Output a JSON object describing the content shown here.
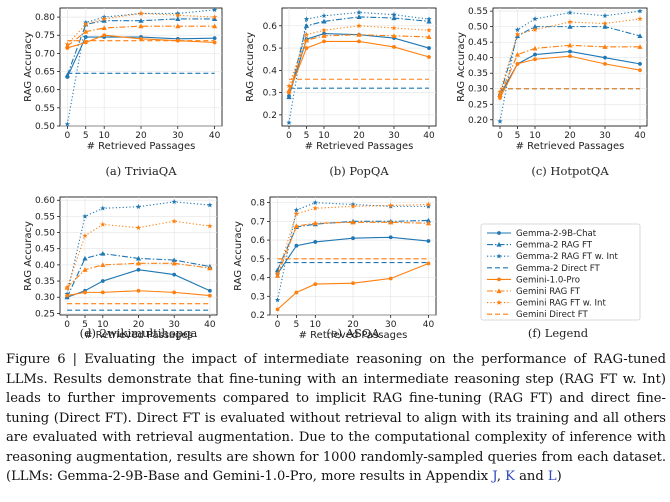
{
  "chart_data": [
    {
      "type": "line",
      "title": "TriviaQA",
      "subcaption_label": "(a)",
      "xlabel": "# Retrieved Passages",
      "ylabel": "RAG Accuracy",
      "x": [
        0,
        5,
        10,
        20,
        30,
        40
      ],
      "ylim": [
        0.5,
        0.825
      ],
      "yticks": [
        0.5,
        0.55,
        0.6,
        0.65,
        0.7,
        0.75,
        0.8
      ],
      "ytick_labels": [
        "0.50",
        "0.55",
        "0.60",
        "0.65",
        "0.70",
        "0.75",
        "0.80"
      ],
      "series": [
        {
          "name": "Gemma-2-9B-Chat",
          "values": [
            0.635,
            0.745,
            0.745,
            0.745,
            0.74,
            0.742
          ]
        },
        {
          "name": "Gemma-2 RAG FT",
          "values": [
            0.64,
            0.78,
            0.79,
            0.79,
            0.795,
            0.795
          ]
        },
        {
          "name": "Gemma-2 RAG FT w. Int",
          "values": [
            0.505,
            0.785,
            0.8,
            0.81,
            0.81,
            0.82
          ]
        },
        {
          "name": "Gemma-2 Direct FT",
          "values": [
            0.645,
            0.645,
            0.645,
            0.645,
            0.645,
            0.645
          ]
        },
        {
          "name": "Gemini-1.0-Pro",
          "values": [
            0.715,
            0.73,
            0.75,
            0.74,
            0.735,
            0.73
          ]
        },
        {
          "name": "Gemini RAG FT",
          "values": [
            0.72,
            0.76,
            0.77,
            0.775,
            0.775,
            0.775
          ]
        },
        {
          "name": "Gemini RAG FT w. Int",
          "values": [
            0.725,
            0.78,
            0.795,
            0.81,
            0.805,
            0.8
          ]
        },
        {
          "name": "Gemini Direct FT",
          "values": [
            0.735,
            0.735,
            0.735,
            0.735,
            0.735,
            0.735
          ]
        }
      ]
    },
    {
      "type": "line",
      "title": "PopQA",
      "subcaption_label": "(b)",
      "xlabel": "# Retrieved Passages",
      "ylabel": "RAG Accuracy",
      "x": [
        0,
        5,
        10,
        20,
        30,
        40
      ],
      "ylim": [
        0.15,
        0.68
      ],
      "yticks": [
        0.2,
        0.3,
        0.4,
        0.5,
        0.6
      ],
      "ytick_labels": [
        "0.2",
        "0.3",
        "0.4",
        "0.5",
        "0.6"
      ],
      "series": [
        {
          "name": "Gemma-2-9B-Chat",
          "values": [
            0.285,
            0.54,
            0.565,
            0.56,
            0.545,
            0.5
          ]
        },
        {
          "name": "Gemma-2 RAG FT",
          "values": [
            0.28,
            0.6,
            0.62,
            0.64,
            0.635,
            0.62
          ]
        },
        {
          "name": "Gemma-2 RAG FT w. Int",
          "values": [
            0.165,
            0.63,
            0.645,
            0.66,
            0.65,
            0.63
          ]
        },
        {
          "name": "Gemma-2 Direct FT",
          "values": [
            0.32,
            0.32,
            0.32,
            0.32,
            0.32,
            0.32
          ]
        },
        {
          "name": "Gemini-1.0-Pro",
          "values": [
            0.3,
            0.5,
            0.53,
            0.53,
            0.505,
            0.46
          ]
        },
        {
          "name": "Gemini RAG FT",
          "values": [
            0.31,
            0.535,
            0.555,
            0.56,
            0.555,
            0.55
          ]
        },
        {
          "name": "Gemini RAG FT w. Int",
          "values": [
            0.33,
            0.56,
            0.58,
            0.6,
            0.59,
            0.58
          ]
        },
        {
          "name": "Gemini Direct FT",
          "values": [
            0.36,
            0.36,
            0.36,
            0.36,
            0.36,
            0.36
          ]
        }
      ]
    },
    {
      "type": "line",
      "title": "HotpotQA",
      "subcaption_label": "(c)",
      "xlabel": "# Retrieved Passages",
      "ylabel": "RAG Accuracy",
      "x": [
        0,
        5,
        10,
        20,
        30,
        40
      ],
      "ylim": [
        0.18,
        0.56
      ],
      "yticks": [
        0.2,
        0.25,
        0.3,
        0.35,
        0.4,
        0.45,
        0.5,
        0.55
      ],
      "ytick_labels": [
        "0.20",
        "0.25",
        "0.30",
        "0.35",
        "0.40",
        "0.45",
        "0.50",
        "0.55"
      ],
      "series": [
        {
          "name": "Gemma-2-9B-Chat",
          "values": [
            0.28,
            0.38,
            0.41,
            0.42,
            0.4,
            0.38
          ]
        },
        {
          "name": "Gemma-2 RAG FT",
          "values": [
            0.28,
            0.47,
            0.5,
            0.5,
            0.5,
            0.47
          ]
        },
        {
          "name": "Gemma-2 RAG FT w. Int",
          "values": [
            0.195,
            0.49,
            0.525,
            0.545,
            0.535,
            0.55
          ]
        },
        {
          "name": "Gemma-2 Direct FT",
          "values": [
            0.3,
            0.3,
            0.3,
            0.3,
            0.3,
            0.3
          ]
        },
        {
          "name": "Gemini-1.0-Pro",
          "values": [
            0.27,
            0.38,
            0.395,
            0.405,
            0.38,
            0.36
          ]
        },
        {
          "name": "Gemini RAG FT",
          "values": [
            0.28,
            0.41,
            0.43,
            0.44,
            0.435,
            0.435
          ]
        },
        {
          "name": "Gemini RAG FT w. Int",
          "values": [
            0.29,
            0.475,
            0.49,
            0.515,
            0.51,
            0.525
          ]
        },
        {
          "name": "Gemini Direct FT",
          "values": [
            0.3,
            0.3,
            0.3,
            0.3,
            0.3,
            0.3
          ]
        }
      ]
    },
    {
      "type": "line",
      "title": "2wikimultihopqa",
      "subcaption_label": "(d)",
      "xlabel": "# Retrieved Passages",
      "ylabel": "RAG Accuracy",
      "x": [
        0,
        5,
        10,
        20,
        30,
        40
      ],
      "ylim": [
        0.245,
        0.61
      ],
      "yticks": [
        0.25,
        0.3,
        0.35,
        0.4,
        0.45,
        0.5,
        0.55,
        0.6
      ],
      "ytick_labels": [
        "0.25",
        "0.30",
        "0.35",
        "0.40",
        "0.45",
        "0.50",
        "0.55",
        "0.60"
      ],
      "series": [
        {
          "name": "Gemma-2-9B-Chat",
          "values": [
            0.3,
            0.32,
            0.35,
            0.385,
            0.37,
            0.32
          ]
        },
        {
          "name": "Gemma-2 RAG FT",
          "values": [
            0.3,
            0.42,
            0.435,
            0.42,
            0.415,
            0.395
          ]
        },
        {
          "name": "Gemma-2 RAG FT w. Int",
          "values": [
            0.31,
            0.55,
            0.575,
            0.58,
            0.595,
            0.585
          ]
        },
        {
          "name": "Gemma-2 Direct FT",
          "values": [
            0.26,
            0.26,
            0.26,
            0.26,
            0.26,
            0.26
          ]
        },
        {
          "name": "Gemini-1.0-Pro",
          "values": [
            0.305,
            0.315,
            0.315,
            0.32,
            0.315,
            0.305
          ]
        },
        {
          "name": "Gemini RAG FT",
          "values": [
            0.33,
            0.385,
            0.4,
            0.405,
            0.405,
            0.39
          ]
        },
        {
          "name": "Gemini RAG FT w. Int",
          "values": [
            0.33,
            0.49,
            0.525,
            0.515,
            0.535,
            0.52
          ]
        },
        {
          "name": "Gemini Direct FT",
          "values": [
            0.28,
            0.28,
            0.28,
            0.28,
            0.28,
            0.28
          ]
        }
      ]
    },
    {
      "type": "line",
      "title": "ASQA",
      "subcaption_label": "(e)",
      "xlabel": "# Retrieved Passages",
      "ylabel": "RAG Accuracy",
      "x": [
        0,
        5,
        10,
        20,
        30,
        40
      ],
      "ylim": [
        0.2,
        0.83
      ],
      "yticks": [
        0.2,
        0.3,
        0.4,
        0.5,
        0.6,
        0.7,
        0.8
      ],
      "ytick_labels": [
        "0.2",
        "0.3",
        "0.4",
        "0.5",
        "0.6",
        "0.7",
        "0.8"
      ],
      "series": [
        {
          "name": "Gemma-2-9B-Chat",
          "values": [
            0.42,
            0.57,
            0.59,
            0.61,
            0.615,
            0.595
          ]
        },
        {
          "name": "Gemma-2 RAG FT",
          "values": [
            0.44,
            0.67,
            0.685,
            0.7,
            0.7,
            0.705
          ]
        },
        {
          "name": "Gemma-2 RAG FT w. Int",
          "values": [
            0.28,
            0.76,
            0.8,
            0.79,
            0.78,
            0.78
          ]
        },
        {
          "name": "Gemma-2 Direct FT",
          "values": [
            0.48,
            0.48,
            0.48,
            0.48,
            0.48,
            0.48
          ]
        },
        {
          "name": "Gemini-1.0-Pro",
          "values": [
            0.23,
            0.32,
            0.365,
            0.37,
            0.395,
            0.475
          ]
        },
        {
          "name": "Gemini RAG FT",
          "values": [
            0.41,
            0.675,
            0.69,
            0.695,
            0.695,
            0.69
          ]
        },
        {
          "name": "Gemini RAG FT w. Int",
          "values": [
            0.42,
            0.74,
            0.77,
            0.78,
            0.785,
            0.79
          ]
        },
        {
          "name": "Gemini Direct FT",
          "values": [
            0.5,
            0.5,
            0.5,
            0.5,
            0.5,
            0.5
          ]
        }
      ]
    }
  ],
  "xtick_labels": [
    "0",
    "5",
    "10",
    "20",
    "30",
    "40"
  ],
  "legend": {
    "subcaption": "(f)  Legend",
    "entries": [
      {
        "name": "Gemma-2-9B-Chat",
        "color": "#1f77b4",
        "dash": "solid",
        "marker": "dot"
      },
      {
        "name": "Gemma-2 RAG FT",
        "color": "#1f77b4",
        "dash": "dashdot",
        "marker": "triangle"
      },
      {
        "name": "Gemma-2 RAG FT w. Int",
        "color": "#1f77b4",
        "dash": "dotted",
        "marker": "star"
      },
      {
        "name": "Gemma-2 Direct FT",
        "color": "#1f77b4",
        "dash": "dashed",
        "marker": "none"
      },
      {
        "name": "Gemini-1.0-Pro",
        "color": "#ff7f0e",
        "dash": "solid",
        "marker": "dot"
      },
      {
        "name": "Gemini RAG FT",
        "color": "#ff7f0e",
        "dash": "dashdot",
        "marker": "triangle"
      },
      {
        "name": "Gemini RAG FT w. Int",
        "color": "#ff7f0e",
        "dash": "dotted",
        "marker": "star"
      },
      {
        "name": "Gemini Direct FT",
        "color": "#ff7f0e",
        "dash": "dashed",
        "marker": "none"
      }
    ]
  },
  "subcaptions": [
    "(a)  TriviaQA",
    "(b)  PopQA",
    "(c)  HotpotQA",
    "(d)  2wikimultihopqa",
    "(e)  ASQA"
  ],
  "caption": {
    "part1": "Figure 6 | Evaluating the impact of intermediate reasoning on the performance of RAG-tuned LLMs. Results demonstrate that fine-tuning with an intermediate reasoning step (RAG FT w. Int) leads to further improvements compared to implicit RAG fine-tuning (RAG FT) and direct fine-tuning (Direct FT). Direct FT is evaluated without retrieval to align with its training and all others are evaluated with retrieval augmentation. Due to the computational complexity of inference with reasoning augmentation, results are shown for 1000 randomly-sampled queries from each dataset. (LLMs: Gemma-2-9B-Base and Gemini-1.0-Pro, more results in Appendix ",
    "link1": "J",
    "sep1": ", ",
    "link2": "K",
    "sep2": " and ",
    "link3": "L",
    "end": ")"
  }
}
